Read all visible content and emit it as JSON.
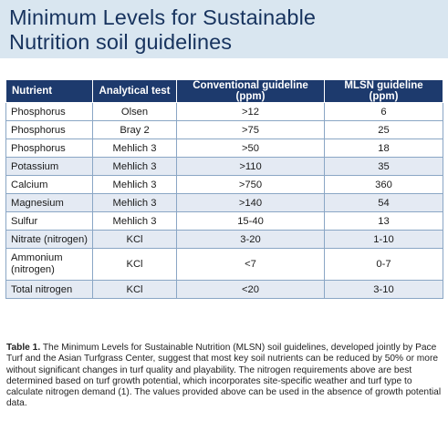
{
  "title": {
    "line1": "Minimum Levels for Sustainable",
    "line2": "Nutrition soil guidelines"
  },
  "table": {
    "headers": [
      "Nutrient",
      "Analytical test",
      "Conventional guideline (ppm)",
      "MLSN guideline (ppm)"
    ],
    "rows": [
      [
        "Phosphorus",
        "Olsen",
        ">12",
        "6"
      ],
      [
        "Phosphorus",
        "Bray 2",
        ">75",
        "25"
      ],
      [
        "Phosphorus",
        "Mehlich 3",
        ">50",
        "18"
      ],
      [
        "Potassium",
        "Mehlich 3",
        ">110",
        "35"
      ],
      [
        "Calcium",
        "Mehlich 3",
        ">750",
        "360"
      ],
      [
        "Magnesium",
        "Mehlich 3",
        ">140",
        "54"
      ],
      [
        "Sulfur",
        "Mehlich 3",
        "15-40",
        "13"
      ],
      [
        "Nitrate (nitrogen)",
        "KCl",
        "3-20",
        "1-10"
      ],
      [
        "Ammonium (nitrogen)",
        "KCl",
        "<7",
        "0-7"
      ],
      [
        "Total nitrogen",
        "KCl",
        "<20",
        "3-10"
      ]
    ]
  },
  "caption": {
    "label": "Table 1.",
    "text": " The Minimum Levels for Sustainable Nutrition (MLSN) soil guidelines, developed jointly by Pace Turf and the Asian Turfgrass Center, suggest that most key soil nutrients can be reduced by 50% or more without significant changes in turf quality and playability. The nitrogen requirements above are best determined based on turf growth potential, which incorporates site-specific weather and turf type to calculate nitrogen demand (1). The values provided above can be used in the absence of growth potential data."
  },
  "colors": {
    "header_band": "#d9e6f0",
    "title_text": "#17335e",
    "table_header": "#1d3a6d",
    "row_tint": "#e4eaf3",
    "grid_line": "#8aa6c5"
  }
}
